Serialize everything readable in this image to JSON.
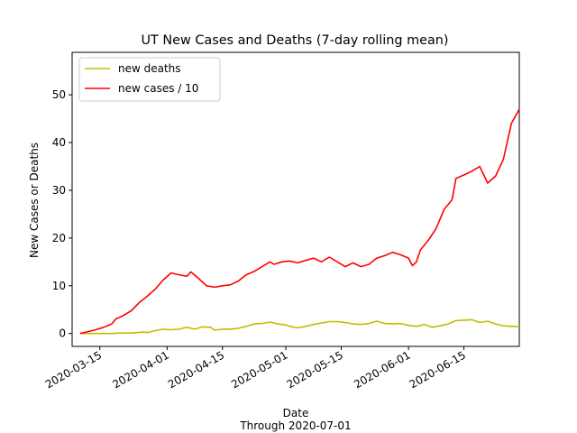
{
  "chart_data": {
    "type": "line",
    "title": "UT New Cases and Deaths (7-day rolling mean)",
    "xlabel": "Date",
    "xlabel_sub": "Through 2020-07-01",
    "ylabel": "New Cases or Deaths",
    "xlim": [
      "2020-03-08",
      "2020-06-29"
    ],
    "ylim": [
      -2.7,
      58.9
    ],
    "x_ticks": [
      "2020-03-15",
      "2020-04-01",
      "2020-04-15",
      "2020-05-01",
      "2020-05-15",
      "2020-06-01",
      "2020-06-15"
    ],
    "y_ticks": [
      0,
      10,
      20,
      30,
      40,
      50
    ],
    "grid": false,
    "legend_position": "top-left",
    "series": [
      {
        "name": "new deaths",
        "color": "#bfbf00",
        "points": [
          [
            "2020-03-10",
            0.0
          ],
          [
            "2020-03-12",
            0.0
          ],
          [
            "2020-03-15",
            0.0
          ],
          [
            "2020-03-18",
            0.0
          ],
          [
            "2020-03-20",
            0.1
          ],
          [
            "2020-03-23",
            0.1
          ],
          [
            "2020-03-26",
            0.3
          ],
          [
            "2020-03-27",
            0.2
          ],
          [
            "2020-03-29",
            0.6
          ],
          [
            "2020-03-31",
            0.9
          ],
          [
            "2020-04-02",
            0.8
          ],
          [
            "2020-04-04",
            0.9
          ],
          [
            "2020-04-06",
            1.3
          ],
          [
            "2020-04-08",
            0.9
          ],
          [
            "2020-04-10",
            1.4
          ],
          [
            "2020-04-12",
            1.3
          ],
          [
            "2020-04-13",
            0.7
          ],
          [
            "2020-04-15",
            0.9
          ],
          [
            "2020-04-17",
            0.9
          ],
          [
            "2020-04-19",
            1.1
          ],
          [
            "2020-04-21",
            1.5
          ],
          [
            "2020-04-23",
            2.0
          ],
          [
            "2020-04-25",
            2.1
          ],
          [
            "2020-04-27",
            2.4
          ],
          [
            "2020-04-29",
            2.0
          ],
          [
            "2020-05-01",
            1.8
          ],
          [
            "2020-05-02",
            1.5
          ],
          [
            "2020-05-04",
            1.2
          ],
          [
            "2020-05-06",
            1.5
          ],
          [
            "2020-05-08",
            1.9
          ],
          [
            "2020-05-10",
            2.2
          ],
          [
            "2020-05-12",
            2.5
          ],
          [
            "2020-05-14",
            2.5
          ],
          [
            "2020-05-16",
            2.3
          ],
          [
            "2020-05-18",
            2.0
          ],
          [
            "2020-05-20",
            1.9
          ],
          [
            "2020-05-22",
            2.1
          ],
          [
            "2020-05-24",
            2.6
          ],
          [
            "2020-05-26",
            2.1
          ],
          [
            "2020-05-28",
            2.0
          ],
          [
            "2020-05-30",
            2.1
          ],
          [
            "2020-06-01",
            1.7
          ],
          [
            "2020-06-03",
            1.5
          ],
          [
            "2020-06-05",
            1.9
          ],
          [
            "2020-06-07",
            1.3
          ],
          [
            "2020-06-09",
            1.6
          ],
          [
            "2020-06-11",
            2.0
          ],
          [
            "2020-06-13",
            2.7
          ],
          [
            "2020-06-15",
            2.8
          ],
          [
            "2020-06-17",
            2.9
          ],
          [
            "2020-06-19",
            2.3
          ],
          [
            "2020-06-21",
            2.6
          ],
          [
            "2020-06-23",
            2.0
          ],
          [
            "2020-06-25",
            1.6
          ],
          [
            "2020-06-27",
            1.5
          ],
          [
            "2020-06-29",
            1.5
          ]
        ]
      },
      {
        "name": "new cases / 10",
        "color": "#ff0000",
        "points": [
          [
            "2020-03-10",
            0.0
          ],
          [
            "2020-03-12",
            0.4
          ],
          [
            "2020-03-14",
            0.8
          ],
          [
            "2020-03-16",
            1.3
          ],
          [
            "2020-03-18",
            2.0
          ],
          [
            "2020-03-19",
            3.0
          ],
          [
            "2020-03-21",
            3.8
          ],
          [
            "2020-03-23",
            4.8
          ],
          [
            "2020-03-25",
            6.5
          ],
          [
            "2020-03-27",
            7.8
          ],
          [
            "2020-03-29",
            9.3
          ],
          [
            "2020-03-31",
            11.2
          ],
          [
            "2020-04-02",
            12.7
          ],
          [
            "2020-04-04",
            12.3
          ],
          [
            "2020-04-06",
            12.0
          ],
          [
            "2020-04-07",
            12.9
          ],
          [
            "2020-04-09",
            11.5
          ],
          [
            "2020-04-11",
            10.0
          ],
          [
            "2020-04-13",
            9.7
          ],
          [
            "2020-04-15",
            10.0
          ],
          [
            "2020-04-17",
            10.2
          ],
          [
            "2020-04-19",
            11.0
          ],
          [
            "2020-04-21",
            12.3
          ],
          [
            "2020-04-23",
            13.0
          ],
          [
            "2020-04-25",
            14.0
          ],
          [
            "2020-04-27",
            15.0
          ],
          [
            "2020-04-28",
            14.5
          ],
          [
            "2020-04-30",
            15.0
          ],
          [
            "2020-05-02",
            15.2
          ],
          [
            "2020-05-04",
            14.8
          ],
          [
            "2020-05-06",
            15.3
          ],
          [
            "2020-05-08",
            15.8
          ],
          [
            "2020-05-10",
            15.0
          ],
          [
            "2020-05-12",
            16.0
          ],
          [
            "2020-05-14",
            15.0
          ],
          [
            "2020-05-16",
            14.0
          ],
          [
            "2020-05-18",
            14.8
          ],
          [
            "2020-05-20",
            14.0
          ],
          [
            "2020-05-22",
            14.5
          ],
          [
            "2020-05-24",
            15.8
          ],
          [
            "2020-05-26",
            16.3
          ],
          [
            "2020-05-28",
            17.0
          ],
          [
            "2020-05-30",
            16.5
          ],
          [
            "2020-06-01",
            15.8
          ],
          [
            "2020-06-02",
            14.2
          ],
          [
            "2020-06-03",
            15.0
          ],
          [
            "2020-06-04",
            17.5
          ],
          [
            "2020-06-06",
            19.5
          ],
          [
            "2020-06-08",
            22.0
          ],
          [
            "2020-06-10",
            26.0
          ],
          [
            "2020-06-12",
            28.0
          ],
          [
            "2020-06-13",
            32.5
          ],
          [
            "2020-06-15",
            33.2
          ],
          [
            "2020-06-17",
            34.0
          ],
          [
            "2020-06-19",
            35.0
          ],
          [
            "2020-06-21",
            31.5
          ],
          [
            "2020-06-23",
            33.0
          ],
          [
            "2020-06-25",
            36.5
          ],
          [
            "2020-06-27",
            44.0
          ],
          [
            "2020-06-29",
            47.0
          ]
        ]
      }
    ]
  }
}
